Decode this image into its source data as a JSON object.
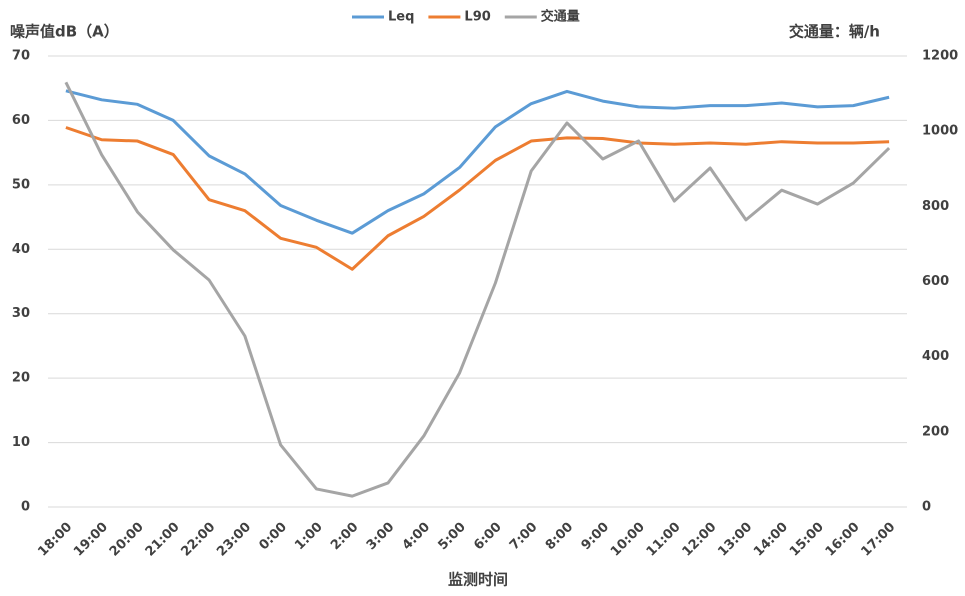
{
  "chart_data": {
    "type": "line",
    "y_label": "噪声值dB（A）",
    "y2_label": "交通量：辆/h",
    "x_label": "监测时间",
    "categories": [
      "18:00",
      "19:00",
      "20:00",
      "21:00",
      "22:00",
      "23:00",
      "0:00",
      "1:00",
      "2:00",
      "3:00",
      "4:00",
      "5:00",
      "6:00",
      "7:00",
      "8:00",
      "9:00",
      "10:00",
      "11:00",
      "12:00",
      "13:00",
      "14:00",
      "15:00",
      "16:00",
      "17:00"
    ],
    "series": [
      {
        "name": "Leq",
        "color": "#5b9bd5",
        "values": [
          64.6,
          63.2,
          62.5,
          60.0,
          54.5,
          51.7,
          46.8,
          44.5,
          42.5,
          46.0,
          48.6,
          52.7,
          59.0,
          62.6,
          64.5,
          63.0,
          62.1,
          61.9,
          62.3,
          62.3,
          62.7,
          62.1,
          62.3,
          63.6
        ]
      },
      {
        "name": "L90",
        "color": "#ed7d31",
        "values": [
          58.9,
          57.0,
          56.8,
          54.7,
          47.7,
          46.0,
          41.7,
          40.3,
          36.9,
          42.1,
          45.1,
          49.2,
          53.8,
          56.8,
          57.3,
          57.2,
          56.5,
          56.3,
          56.5,
          56.3,
          56.7,
          56.5,
          56.5,
          56.7
        ]
      },
      {
        "name": "交通量",
        "color": "#a5a5a5",
        "axis": "y2",
        "values": [
          1130,
          937,
          785,
          684,
          604,
          455,
          165,
          48,
          29,
          64,
          189,
          357,
          596,
          894,
          1022,
          926,
          974,
          814,
          902,
          764,
          843,
          806,
          862,
          955
        ]
      }
    ],
    "ylim": [
      0,
      70
    ],
    "yticks": [
      0,
      10,
      20,
      30,
      40,
      50,
      60,
      70
    ],
    "y2lim": [
      0,
      1200
    ],
    "y2ticks": [
      0,
      200,
      400,
      600,
      800,
      1000,
      1200
    ],
    "grid": true
  }
}
